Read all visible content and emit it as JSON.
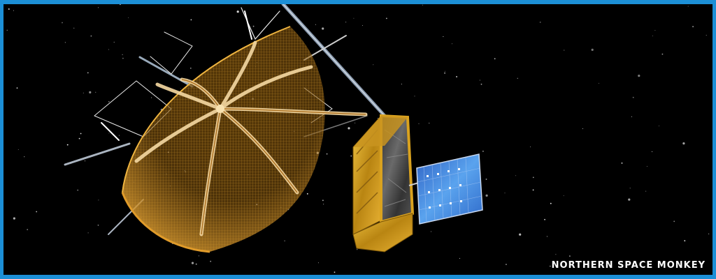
{
  "image": {
    "subject": "satellite-with-mesh-reflector",
    "background_color": "#000000",
    "frame_color": "#1c8fd6"
  },
  "watermark": {
    "text": "NORTHERN SPACE MONKEY"
  },
  "colors": {
    "reflector_mesh": "#e0a030",
    "reflector_rib": "#f3d9a0",
    "bus_gold": "#d9a21f",
    "bus_dark": "#3a3a3a",
    "solar_panel": "#3d7ed8"
  },
  "icons": [
    "star-icon"
  ]
}
